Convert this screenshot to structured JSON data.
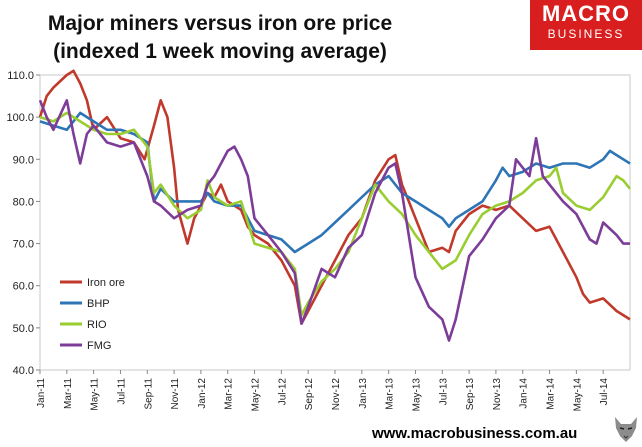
{
  "title_line1": "Major miners versus iron ore price",
  "title_line2": "(indexed 1 week moving average)",
  "logo": {
    "line1": "MACRO",
    "line2": "BUSINESS",
    "color": "#d81e1e"
  },
  "footer": "www.macrobusiness.com.au",
  "chart_data": {
    "type": "line",
    "ylim": [
      40,
      110
    ],
    "yticks": [
      "40.0",
      "50.0",
      "60.0",
      "70.0",
      "80.0",
      "90.0",
      "100.0",
      "110.0"
    ],
    "ytick_values": [
      40,
      50,
      60,
      70,
      80,
      90,
      100,
      110
    ],
    "xlim": [
      0,
      44
    ],
    "xtick_labels": [
      "Jan-11",
      "Mar-11",
      "May-11",
      "Jul-11",
      "Sep-11",
      "Nov-11",
      "Jan-12",
      "Mar-12",
      "May-12",
      "Jul-12",
      "Sep-12",
      "Nov-12",
      "Jan-13",
      "Mar-13",
      "May-13",
      "Jul-13",
      "Sep-13",
      "Nov-13",
      "Jan-14",
      "Mar-14",
      "May-14",
      "Jul-14"
    ],
    "xtick_months": [
      0,
      2,
      4,
      6,
      8,
      10,
      12,
      14,
      16,
      18,
      20,
      22,
      24,
      26,
      28,
      30,
      32,
      34,
      36,
      38,
      40,
      42
    ],
    "legend_position": "bottom-left",
    "series": [
      {
        "name": "Iron ore",
        "color": "#c0392b",
        "points": [
          [
            0,
            100
          ],
          [
            0.5,
            105
          ],
          [
            1,
            107
          ],
          [
            2,
            110
          ],
          [
            2.5,
            111
          ],
          [
            3,
            108
          ],
          [
            3.5,
            104
          ],
          [
            4,
            97
          ],
          [
            5,
            100
          ],
          [
            6,
            95
          ],
          [
            7,
            94
          ],
          [
            7.8,
            90
          ],
          [
            8.5,
            98
          ],
          [
            9,
            104
          ],
          [
            9.5,
            100
          ],
          [
            10,
            88
          ],
          [
            10.3,
            78
          ],
          [
            11,
            70
          ],
          [
            11.5,
            76
          ],
          [
            12,
            79
          ],
          [
            12.5,
            82
          ],
          [
            13,
            81
          ],
          [
            13.5,
            84
          ],
          [
            14,
            80
          ],
          [
            15,
            78
          ],
          [
            15.5,
            74
          ],
          [
            16,
            72
          ],
          [
            17,
            70
          ],
          [
            18,
            66
          ],
          [
            19,
            60
          ],
          [
            19.5,
            51
          ],
          [
            20,
            54
          ],
          [
            21,
            60
          ],
          [
            22,
            66
          ],
          [
            23,
            72
          ],
          [
            24,
            76
          ],
          [
            25,
            85
          ],
          [
            26,
            90
          ],
          [
            26.5,
            91
          ],
          [
            27,
            84
          ],
          [
            27.5,
            80
          ],
          [
            28,
            76
          ],
          [
            29,
            68
          ],
          [
            30,
            69
          ],
          [
            30.5,
            68
          ],
          [
            31,
            73
          ],
          [
            32,
            77
          ],
          [
            33,
            79
          ],
          [
            34,
            78
          ],
          [
            35,
            79
          ],
          [
            36,
            76
          ],
          [
            37,
            73
          ],
          [
            38,
            74
          ],
          [
            39,
            68
          ],
          [
            40,
            62
          ],
          [
            40.5,
            58
          ],
          [
            41,
            56
          ],
          [
            42,
            57
          ],
          [
            43,
            54
          ],
          [
            44,
            52
          ]
        ]
      },
      {
        "name": "BHP",
        "color": "#2e75b6",
        "points": [
          [
            0,
            99
          ],
          [
            1,
            98
          ],
          [
            2,
            97
          ],
          [
            3,
            101
          ],
          [
            4,
            99
          ],
          [
            5,
            97
          ],
          [
            6,
            97
          ],
          [
            7,
            96
          ],
          [
            8,
            94
          ],
          [
            8.5,
            80
          ],
          [
            9,
            83
          ],
          [
            10,
            80
          ],
          [
            11,
            80
          ],
          [
            12,
            80
          ],
          [
            12.5,
            82
          ],
          [
            13,
            80
          ],
          [
            14,
            79
          ],
          [
            15,
            79
          ],
          [
            16,
            73
          ],
          [
            17,
            72
          ],
          [
            18,
            71
          ],
          [
            19,
            68
          ],
          [
            20,
            70
          ],
          [
            21,
            72
          ],
          [
            22,
            75
          ],
          [
            23,
            78
          ],
          [
            24,
            81
          ],
          [
            25,
            84
          ],
          [
            26,
            86
          ],
          [
            27,
            82
          ],
          [
            28,
            80
          ],
          [
            29,
            78
          ],
          [
            30,
            76
          ],
          [
            30.5,
            74
          ],
          [
            31,
            76
          ],
          [
            32,
            78
          ],
          [
            33,
            80
          ],
          [
            34,
            85
          ],
          [
            34.5,
            88
          ],
          [
            35,
            86
          ],
          [
            36,
            87
          ],
          [
            37,
            89
          ],
          [
            38,
            88
          ],
          [
            39,
            89
          ],
          [
            40,
            89
          ],
          [
            41,
            88
          ],
          [
            42,
            90
          ],
          [
            42.5,
            92
          ],
          [
            43,
            91
          ],
          [
            43.5,
            90
          ],
          [
            44,
            89
          ]
        ]
      },
      {
        "name": "RIO",
        "color": "#9acd32",
        "points": [
          [
            0,
            100
          ],
          [
            1,
            99
          ],
          [
            2,
            101
          ],
          [
            3,
            99
          ],
          [
            4,
            97
          ],
          [
            5,
            96
          ],
          [
            6,
            96
          ],
          [
            7,
            97
          ],
          [
            8,
            93
          ],
          [
            8.5,
            82
          ],
          [
            9,
            84
          ],
          [
            10,
            79
          ],
          [
            11,
            76
          ],
          [
            12,
            78
          ],
          [
            12.5,
            85
          ],
          [
            13,
            81
          ],
          [
            14,
            79
          ],
          [
            15,
            80
          ],
          [
            16,
            70
          ],
          [
            17,
            69
          ],
          [
            18,
            68
          ],
          [
            19,
            64
          ],
          [
            19.5,
            53
          ],
          [
            20,
            56
          ],
          [
            21,
            61
          ],
          [
            22,
            64
          ],
          [
            23,
            68
          ],
          [
            24,
            76
          ],
          [
            25,
            84
          ],
          [
            26,
            80
          ],
          [
            27,
            77
          ],
          [
            28,
            72
          ],
          [
            29,
            68
          ],
          [
            30,
            64
          ],
          [
            31,
            66
          ],
          [
            32,
            72
          ],
          [
            33,
            77
          ],
          [
            34,
            79
          ],
          [
            35,
            80
          ],
          [
            36,
            82
          ],
          [
            37,
            85
          ],
          [
            38,
            86
          ],
          [
            38.5,
            88
          ],
          [
            39,
            82
          ],
          [
            40,
            79
          ],
          [
            41,
            78
          ],
          [
            42,
            81
          ],
          [
            43,
            86
          ],
          [
            43.5,
            85
          ],
          [
            44,
            83
          ]
        ]
      },
      {
        "name": "FMG",
        "color": "#7d3c98",
        "points": [
          [
            0,
            104
          ],
          [
            0.5,
            100
          ],
          [
            1,
            97
          ],
          [
            2,
            104
          ],
          [
            2.5,
            96
          ],
          [
            3,
            89
          ],
          [
            3.5,
            96
          ],
          [
            4,
            98
          ],
          [
            5,
            94
          ],
          [
            6,
            93
          ],
          [
            7,
            94
          ],
          [
            7.5,
            90
          ],
          [
            8,
            86
          ],
          [
            8.5,
            80
          ],
          [
            9,
            79
          ],
          [
            10,
            76
          ],
          [
            11,
            78
          ],
          [
            12,
            79
          ],
          [
            12.5,
            84
          ],
          [
            13,
            86
          ],
          [
            14,
            92
          ],
          [
            14.5,
            93
          ],
          [
            15,
            90
          ],
          [
            15.5,
            86
          ],
          [
            16,
            76
          ],
          [
            17,
            72
          ],
          [
            18,
            68
          ],
          [
            19,
            63
          ],
          [
            19.5,
            51
          ],
          [
            20,
            55
          ],
          [
            21,
            64
          ],
          [
            22,
            62
          ],
          [
            23,
            69
          ],
          [
            24,
            72
          ],
          [
            25,
            82
          ],
          [
            26,
            88
          ],
          [
            26.5,
            89
          ],
          [
            27,
            82
          ],
          [
            28,
            62
          ],
          [
            29,
            55
          ],
          [
            30,
            52
          ],
          [
            30.5,
            47
          ],
          [
            31,
            52
          ],
          [
            32,
            67
          ],
          [
            33,
            71
          ],
          [
            34,
            76
          ],
          [
            35,
            79
          ],
          [
            35.5,
            90
          ],
          [
            36,
            88
          ],
          [
            36.5,
            86
          ],
          [
            37,
            95
          ],
          [
            37.5,
            86
          ],
          [
            38,
            84
          ],
          [
            39,
            80
          ],
          [
            40,
            77
          ],
          [
            41,
            71
          ],
          [
            41.5,
            70
          ],
          [
            42,
            75
          ],
          [
            43,
            72
          ],
          [
            43.5,
            70
          ],
          [
            44,
            70
          ]
        ]
      }
    ]
  }
}
